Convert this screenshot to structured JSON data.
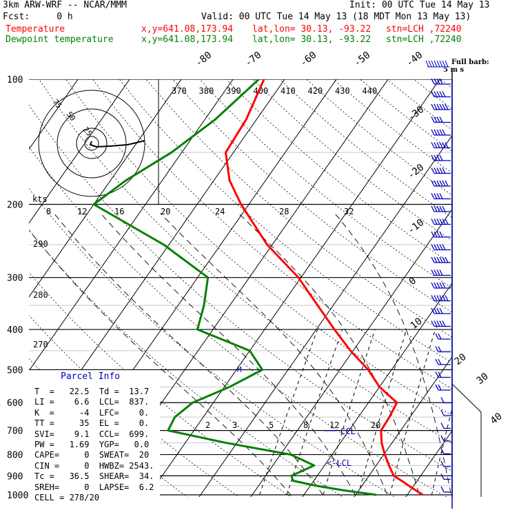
{
  "header": {
    "model": "3km ARW-WRF -- NCAR/MMM",
    "init": "Init: 00 UTC Tue 14 May 13",
    "fcst": "Fcst:     0 h",
    "valid": "Valid: 00 UTC Tue 14 May 13 (18 MDT Mon 13 May 13)",
    "temp_label": "Temperature",
    "dew_label": "Dewpoint temperature",
    "xy": "x,y=641.08,173.94",
    "latlon": "lat,lon= 30.13, -93.22",
    "stn": "stn=LCH ,72240",
    "barb_label_1": "Full barb:",
    "barb_label_2": "5 m s"
  },
  "colors": {
    "temperature": "#ff0000",
    "dewpoint": "#008000",
    "parcel": "#0000c0"
  },
  "parcel_info": {
    "title": "Parcel Info",
    "rows": [
      "T  =   22.5  Td =  13.7",
      "LI =    6.6  LCL=  837.",
      "K  =     -4  LFC=    0.",
      "TT =     35  EL =    0.",
      "SVI=    9.1  CCL=  699.",
      "PW =   1.69  YGP=   0.0",
      "CAPE=     0  SWEAT=  20",
      "CIN =     0  HWBZ= 2543.",
      "Tc =   36.5  SHEAR=  34.",
      "SREH=     0  LAPSE=  6.2",
      "CELL = 278/20"
    ]
  },
  "chart_data": {
    "type": "skew-t log-p sounding",
    "pressure_levels": [
      "100",
      "200",
      "300",
      "400",
      "500",
      "600",
      "700",
      "800",
      "900",
      "1000"
    ],
    "isotherm_labels": [
      "-80",
      "-70",
      "-60",
      "-50",
      "-40",
      "-30",
      "-20",
      "-10",
      "0",
      "10",
      "20",
      "30",
      "40"
    ],
    "theta_labels": [
      "370",
      "380",
      "390",
      "400",
      "410",
      "420",
      "430",
      "440"
    ],
    "hodo_speed_labels": [
      "kts",
      "8",
      "12",
      "16",
      "20",
      "24",
      "28",
      "32"
    ],
    "dry_adiabat_labels": [
      "290",
      "280",
      "270"
    ],
    "mixing_ratio_labels": [
      "2",
      "3",
      "5",
      "8",
      "12",
      "20"
    ],
    "hodo_ring_labels": [
      "75",
      "50",
      "25"
    ],
    "ccl_label": "CCL",
    "lcl_label": "<-LCL",
    "temperature": [
      [
        1000,
        23.0
      ],
      [
        975,
        21.0
      ],
      [
        950,
        19.0
      ],
      [
        925,
        17.0
      ],
      [
        900,
        14.8
      ],
      [
        850,
        12.5
      ],
      [
        800,
        10.2
      ],
      [
        750,
        8.0
      ],
      [
        700,
        6.2
      ],
      [
        650,
        6.0
      ],
      [
        600,
        5.5
      ],
      [
        550,
        0.0
      ],
      [
        500,
        -4.5
      ],
      [
        450,
        -10.5
      ],
      [
        400,
        -16.5
      ],
      [
        350,
        -23.0
      ],
      [
        300,
        -30.5
      ],
      [
        250,
        -41.0
      ],
      [
        200,
        -51.5
      ],
      [
        175,
        -57.0
      ],
      [
        150,
        -61.5
      ],
      [
        125,
        -62.0
      ],
      [
        100,
        -64.0
      ]
    ],
    "dewpoint": [
      [
        1000,
        14.0
      ],
      [
        975,
        7.0
      ],
      [
        950,
        1.0
      ],
      [
        925,
        -4.0
      ],
      [
        900,
        -5.0
      ],
      [
        850,
        -2.0
      ],
      [
        800,
        -8.0
      ],
      [
        750,
        -22.0
      ],
      [
        700,
        -35.0
      ],
      [
        650,
        -35.5
      ],
      [
        600,
        -34.0
      ],
      [
        550,
        -29.0
      ],
      [
        500,
        -25.0
      ],
      [
        450,
        -30.0
      ],
      [
        400,
        -43.0
      ],
      [
        350,
        -45.0
      ],
      [
        300,
        -48.0
      ],
      [
        250,
        -61.0
      ],
      [
        200,
        -80.0
      ],
      [
        175,
        -77.0
      ],
      [
        150,
        -72.0
      ],
      [
        125,
        -68.0
      ],
      [
        100,
        -65.0
      ]
    ],
    "wind_barb_count": 33
  }
}
